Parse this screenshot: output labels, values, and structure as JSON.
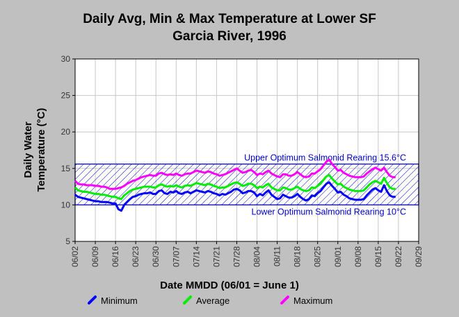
{
  "chart_data": {
    "type": "line",
    "title": "Daily Avg, Min & Max Temperature at Lower SF",
    "subtitle": "Garcia River, 1996",
    "xlabel": "Date MMDD (06/01 = June 1)",
    "ylabel": "Daily Water Temperature (°C)",
    "ylabel_lines": [
      "Daily Water",
      "Temperature (°C)"
    ],
    "ylim": [
      5,
      30
    ],
    "yticks": [
      "5",
      "10",
      "15",
      "20",
      "25",
      "30"
    ],
    "xlim": [
      0,
      119
    ],
    "xtick_labels": [
      "06/02",
      "06/09",
      "06/16",
      "06/23",
      "06/30",
      "07/07",
      "07/14",
      "07/21",
      "07/28",
      "08/04",
      "08/11",
      "08/18",
      "08/25",
      "09/01",
      "09/08",
      "09/15",
      "09/22",
      "09/29"
    ],
    "grid": true,
    "legend_position": "bottom",
    "band": {
      "lower": 10,
      "upper": 15.6,
      "upper_label": "Upper Optimum Salmonid Rearing 15.6°C",
      "lower_label": "Lower Optimum Salmonid Rearing 10°C",
      "color": "#0000cc"
    },
    "series": [
      {
        "name": "Minimum",
        "color": "#0000ff",
        "x_start": "06/02",
        "values": [
          11.4,
          11.1,
          11,
          10.9,
          10.8,
          10.7,
          10.6,
          10.5,
          10.5,
          10.4,
          10.4,
          10.4,
          10.3,
          10.2,
          10.2,
          9.4,
          9.2,
          10,
          10.4,
          10.8,
          11.1,
          11.2,
          11.4,
          11.5,
          11.6,
          11.6,
          11.7,
          11.5,
          11.5,
          11.9,
          12,
          11.6,
          11.5,
          11.8,
          11.7,
          11.9,
          11.6,
          11.5,
          11.7,
          11.8,
          11.6,
          11.8,
          12,
          11.9,
          11.8,
          11.7,
          11.9,
          11.8,
          11.6,
          11.5,
          11.3,
          11.5,
          11.4,
          11.6,
          11.8,
          12.1,
          12.2,
          12,
          11.6,
          11.7,
          11.9,
          11.9,
          11.7,
          11.2,
          11.5,
          11.3,
          11.7,
          12,
          11.4,
          11.1,
          10.8,
          10.9,
          11.4,
          11.2,
          11,
          11,
          11.2,
          11.5,
          11.1,
          10.8,
          10.6,
          10.8,
          11.3,
          11.2,
          11.6,
          11.9,
          12.4,
          12.9,
          13.1,
          12.6,
          12.2,
          11.7,
          11.8,
          11.4,
          11.2,
          10.9,
          10.8,
          10.7,
          10.7,
          10.7,
          10.8,
          11.3,
          11.7,
          12.1,
          12.3,
          12,
          11.8,
          12.7,
          11.9,
          11.3,
          11.1,
          11.1
        ],
        "x_end": "09/22"
      },
      {
        "name": "Average",
        "color": "#00ee00",
        "x_start": "06/02",
        "values": [
          12.4,
          12,
          11.9,
          11.8,
          11.8,
          11.7,
          11.6,
          11.5,
          11.5,
          11.4,
          11.4,
          11.3,
          11.2,
          11.1,
          11.1,
          10.9,
          10.8,
          11.3,
          11.6,
          11.9,
          12.1,
          12.2,
          12.3,
          12.4,
          12.5,
          12.5,
          12.5,
          12.4,
          12.4,
          12.7,
          12.8,
          12.6,
          12.5,
          12.6,
          12.5,
          12.7,
          12.5,
          12.4,
          12.6,
          12.7,
          12.6,
          12.8,
          13,
          12.9,
          12.8,
          12.7,
          12.9,
          12.8,
          12.6,
          12.5,
          12.3,
          12.4,
          12.4,
          12.6,
          12.8,
          13,
          13.1,
          12.9,
          12.6,
          12.7,
          12.9,
          12.9,
          12.7,
          12.3,
          12.5,
          12.4,
          12.7,
          12.9,
          12.4,
          12.2,
          12,
          12,
          12.4,
          12.3,
          12.1,
          12.1,
          12.3,
          12.5,
          12.2,
          12,
          11.9,
          12,
          12.4,
          12.3,
          12.6,
          12.9,
          13.4,
          13.9,
          14.1,
          13.6,
          13.2,
          12.8,
          12.9,
          12.5,
          12.3,
          12.1,
          12,
          11.9,
          11.9,
          11.9,
          12,
          12.4,
          12.8,
          13.1,
          13.3,
          13.1,
          12.9,
          13.7,
          13,
          12.4,
          12.2,
          12.2
        ],
        "x_end": "09/22"
      },
      {
        "name": "Maximum",
        "color": "#ff00ff",
        "x_start": "06/02",
        "values": [
          13.3,
          12.9,
          12.8,
          12.8,
          12.7,
          12.7,
          12.7,
          12.6,
          12.6,
          12.5,
          12.5,
          12.4,
          12.2,
          12.2,
          12.2,
          12.3,
          12.4,
          12.6,
          12.9,
          13.1,
          13.3,
          13.4,
          13.6,
          13.8,
          13.9,
          14,
          14.1,
          14,
          14,
          14.3,
          14.4,
          14.2,
          14.1,
          14.2,
          14.1,
          14.3,
          14.1,
          14,
          14.2,
          14.3,
          14.3,
          14.5,
          14.7,
          14.6,
          14.5,
          14.4,
          14.6,
          14.5,
          14.3,
          14.2,
          14,
          14.1,
          14.2,
          14.4,
          14.6,
          14.8,
          15,
          14.7,
          14.4,
          14.5,
          14.7,
          14.8,
          14.5,
          14.1,
          14.3,
          14.2,
          14.5,
          14.7,
          14.3,
          14.1,
          13.9,
          13.8,
          14.2,
          14.2,
          14,
          14,
          14.2,
          14.5,
          14.2,
          13.9,
          13.8,
          13.9,
          14.3,
          14.3,
          14.6,
          14.9,
          15.4,
          15.9,
          16.2,
          15.6,
          15.2,
          14.7,
          14.8,
          14.4,
          14.2,
          14,
          13.9,
          13.8,
          13.8,
          13.8,
          13.9,
          14.3,
          14.6,
          14.9,
          15.1,
          14.9,
          14.7,
          15.1,
          14.5,
          14,
          13.8,
          13.8
        ],
        "x_end": "09/22"
      }
    ]
  }
}
